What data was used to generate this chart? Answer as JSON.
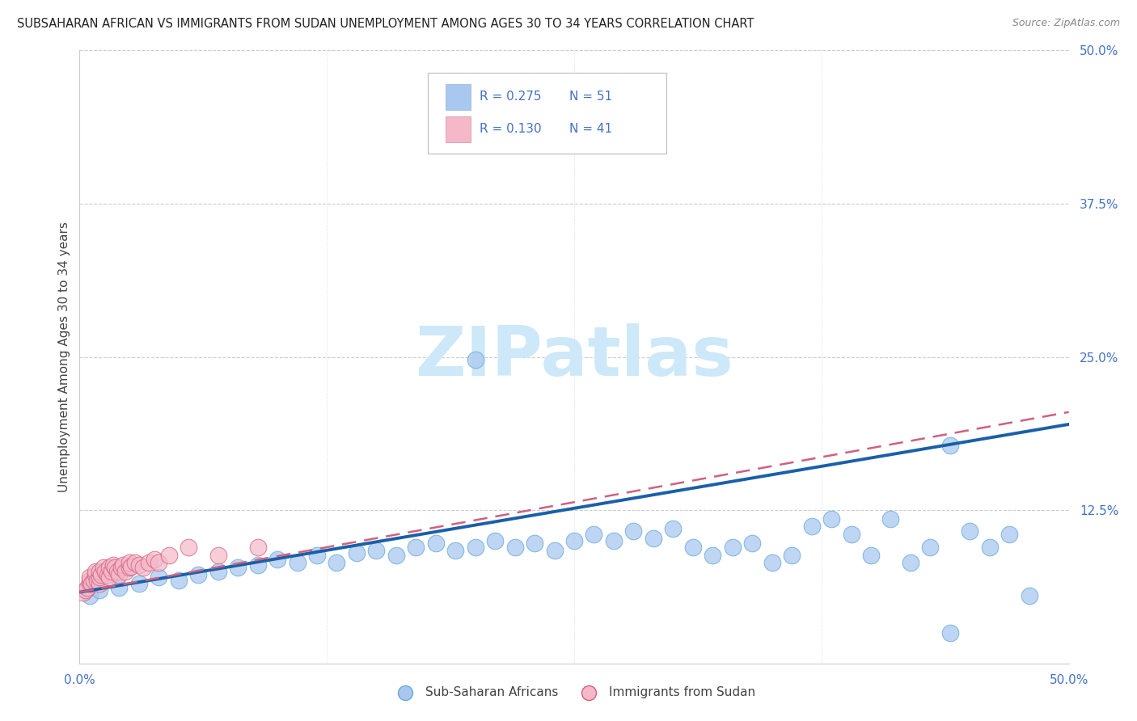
{
  "title": "SUBSAHARAN AFRICAN VS IMMIGRANTS FROM SUDAN UNEMPLOYMENT AMONG AGES 30 TO 34 YEARS CORRELATION CHART",
  "source": "Source: ZipAtlas.com",
  "ylabel": "Unemployment Among Ages 30 to 34 years",
  "x_min": 0.0,
  "x_max": 0.5,
  "y_min": 0.0,
  "y_max": 0.5,
  "blue_R": 0.275,
  "blue_N": 51,
  "pink_R": 0.13,
  "pink_N": 41,
  "blue_color": "#a8c8f0",
  "blue_edge_color": "#6aaad4",
  "blue_line_color": "#1a5fa8",
  "pink_color": "#f5b8c8",
  "pink_edge_color": "#d06080",
  "pink_line_color": "#d06080",
  "legend_box_blue": "#a8c8f0",
  "legend_box_pink": "#f5b8c8",
  "grid_color": "#cccccc",
  "axis_label_color": "#4472c4",
  "watermark_color": "#cde8f8",
  "blue_x": [
    0.005,
    0.01,
    0.02,
    0.03,
    0.04,
    0.05,
    0.06,
    0.07,
    0.08,
    0.09,
    0.1,
    0.11,
    0.12,
    0.13,
    0.14,
    0.15,
    0.16,
    0.17,
    0.18,
    0.19,
    0.2,
    0.21,
    0.22,
    0.23,
    0.24,
    0.25,
    0.26,
    0.27,
    0.28,
    0.29,
    0.3,
    0.31,
    0.32,
    0.33,
    0.34,
    0.35,
    0.36,
    0.37,
    0.38,
    0.39,
    0.4,
    0.41,
    0.42,
    0.43,
    0.44,
    0.45,
    0.46,
    0.47,
    0.48,
    0.2,
    0.44
  ],
  "blue_y": [
    0.055,
    0.06,
    0.062,
    0.065,
    0.07,
    0.068,
    0.072,
    0.075,
    0.078,
    0.08,
    0.085,
    0.082,
    0.088,
    0.082,
    0.09,
    0.092,
    0.088,
    0.095,
    0.098,
    0.092,
    0.095,
    0.1,
    0.095,
    0.098,
    0.092,
    0.1,
    0.105,
    0.1,
    0.108,
    0.102,
    0.11,
    0.095,
    0.088,
    0.095,
    0.098,
    0.082,
    0.088,
    0.112,
    0.118,
    0.105,
    0.088,
    0.118,
    0.082,
    0.095,
    0.025,
    0.108,
    0.095,
    0.105,
    0.055,
    0.248,
    0.178
  ],
  "pink_x": [
    0.002,
    0.003,
    0.004,
    0.005,
    0.005,
    0.005,
    0.006,
    0.007,
    0.008,
    0.008,
    0.009,
    0.01,
    0.01,
    0.01,
    0.011,
    0.012,
    0.013,
    0.014,
    0.015,
    0.015,
    0.016,
    0.017,
    0.018,
    0.019,
    0.02,
    0.021,
    0.022,
    0.023,
    0.025,
    0.025,
    0.026,
    0.028,
    0.03,
    0.032,
    0.035,
    0.038,
    0.04,
    0.045,
    0.055,
    0.07,
    0.09
  ],
  "pink_y": [
    0.058,
    0.06,
    0.062,
    0.065,
    0.068,
    0.07,
    0.065,
    0.068,
    0.072,
    0.075,
    0.068,
    0.065,
    0.07,
    0.075,
    0.072,
    0.078,
    0.075,
    0.072,
    0.07,
    0.078,
    0.075,
    0.08,
    0.078,
    0.075,
    0.072,
    0.078,
    0.08,
    0.075,
    0.078,
    0.082,
    0.079,
    0.082,
    0.08,
    0.078,
    0.082,
    0.085,
    0.082,
    0.088,
    0.095,
    0.088,
    0.095
  ],
  "blue_line_x0": 0.0,
  "blue_line_x1": 0.5,
  "blue_line_y0": 0.058,
  "blue_line_y1": 0.195,
  "pink_line_x0": 0.0,
  "pink_line_x1": 0.5,
  "pink_line_y0": 0.058,
  "pink_line_y1": 0.205
}
